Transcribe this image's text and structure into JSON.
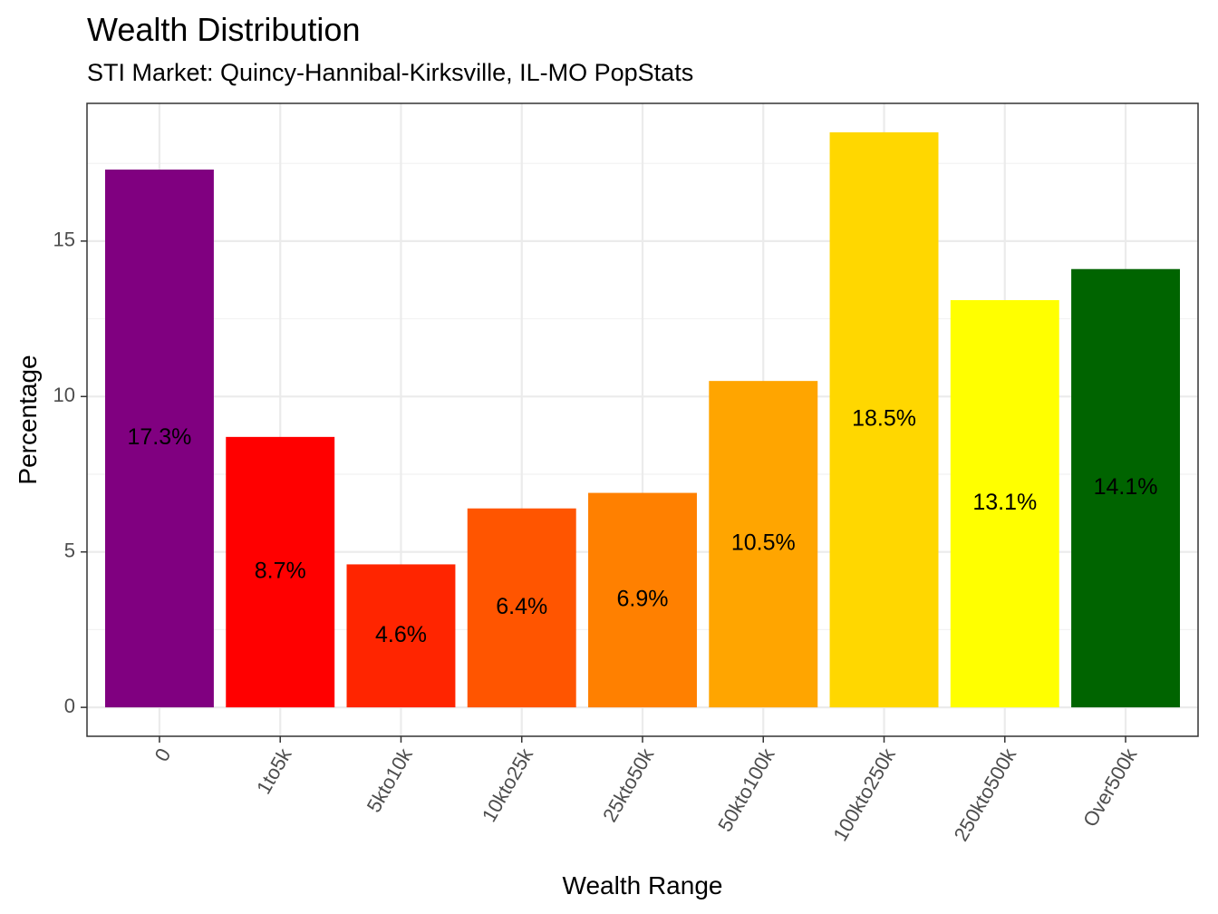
{
  "chart_data": {
    "type": "bar",
    "title": "Wealth Distribution",
    "subtitle": "STI Market: Quincy-Hannibal-Kirksville, IL-MO PopStats",
    "xlabel": "Wealth Range",
    "ylabel": "Percentage",
    "categories": [
      "0",
      "1to5k",
      "5kto10k",
      "10kto25k",
      "25kto50k",
      "50kto100k",
      "100kto250k",
      "250kto500k",
      "Over500k"
    ],
    "values": [
      17.3,
      8.7,
      4.6,
      6.4,
      6.9,
      10.5,
      18.5,
      13.1,
      14.1
    ],
    "data_labels": [
      "17.3%",
      "8.7%",
      "4.6%",
      "6.4%",
      "6.9%",
      "10.5%",
      "18.5%",
      "13.1%",
      "14.1%"
    ],
    "colors": [
      "#800080",
      "#FF0000",
      "#FF2500",
      "#FF5500",
      "#FF8000",
      "#FFA500",
      "#FFD700",
      "#FFFF00",
      "#006400"
    ],
    "yticks": [
      0,
      5,
      10,
      15
    ],
    "ylim": [
      -0.93,
      19.43
    ],
    "grid": true,
    "legend": "none"
  }
}
